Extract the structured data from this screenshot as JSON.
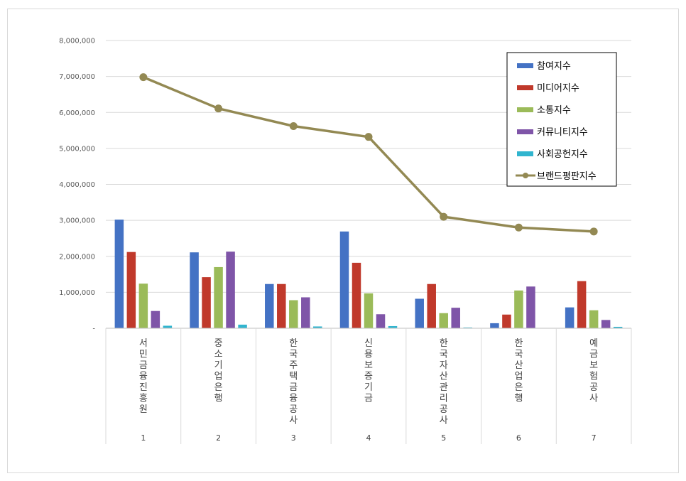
{
  "chart_data": {
    "type": "bar+line",
    "title": "",
    "xlabel": "",
    "ylabel": "",
    "ylim": [
      0,
      8000000
    ],
    "yticks": [
      0,
      1000000,
      2000000,
      3000000,
      4000000,
      5000000,
      6000000,
      7000000,
      8000000
    ],
    "ytick_labels": [
      "-",
      "1,000,000",
      "2,000,000",
      "3,000,000",
      "4,000,000",
      "5,000,000",
      "6,000,000",
      "7,000,000",
      "8,000,000"
    ],
    "grid": true,
    "legend_position": "top-right",
    "categories": [
      "서민금융진흥원",
      "중소기업은행",
      "한국주택금융공사",
      "신용보증기금",
      "한국자산관리공사",
      "한국산업은행",
      "예금보험공사"
    ],
    "ranks": [
      "1",
      "2",
      "3",
      "4",
      "5",
      "6",
      "7"
    ],
    "series": [
      {
        "name": "참여지수",
        "kind": "bar",
        "color": "#4472c4",
        "values": [
          3020000,
          2110000,
          1230000,
          2690000,
          820000,
          140000,
          580000
        ]
      },
      {
        "name": "미디어지수",
        "kind": "bar",
        "color": "#c0392b",
        "values": [
          2120000,
          1420000,
          1230000,
          1820000,
          1230000,
          380000,
          1310000
        ]
      },
      {
        "name": "소통지수",
        "kind": "bar",
        "color": "#9bbb59",
        "values": [
          1240000,
          1700000,
          780000,
          970000,
          420000,
          1050000,
          500000
        ]
      },
      {
        "name": "커뮤니티지수",
        "kind": "bar",
        "color": "#7f55a8",
        "values": [
          480000,
          2130000,
          860000,
          390000,
          570000,
          1160000,
          230000
        ]
      },
      {
        "name": "사회공헌지수",
        "kind": "bar",
        "color": "#31b5cf",
        "values": [
          70000,
          100000,
          50000,
          60000,
          20000,
          0,
          40000
        ]
      },
      {
        "name": "브랜드평판지수",
        "kind": "line",
        "color": "#938953",
        "values": [
          6980000,
          6110000,
          5620000,
          5320000,
          3100000,
          2800000,
          2690000
        ]
      }
    ]
  }
}
